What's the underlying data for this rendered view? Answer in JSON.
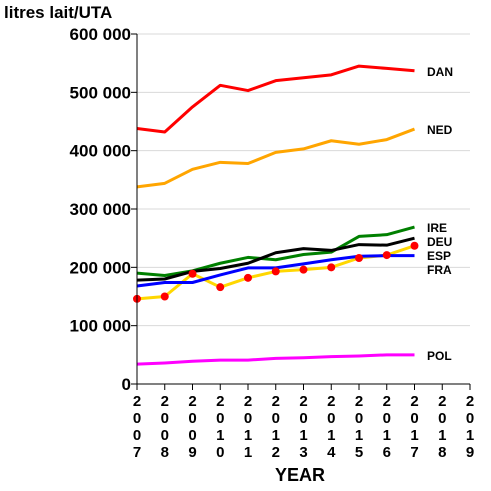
{
  "chart_data": {
    "type": "line",
    "title": "",
    "ylabel": "litres lait/UTA",
    "xlabel": "YEAR",
    "x": [
      2007,
      2008,
      2009,
      2010,
      2011,
      2012,
      2013,
      2014,
      2015,
      2016,
      2017
    ],
    "xlim": [
      2007,
      2019
    ],
    "x_ticks": [
      "2007",
      "2008",
      "2009",
      "2010",
      "2011",
      "2012",
      "2013",
      "2014",
      "2015",
      "2016",
      "2017",
      "2018",
      "2019"
    ],
    "ylim": [
      0,
      600000
    ],
    "y_ticks": [
      "0",
      "100 000",
      "200 000",
      "300 000",
      "400 000",
      "500 000",
      "600 000"
    ],
    "grid": "horizontal",
    "series": [
      {
        "name": "DAN",
        "color": "#ff0000",
        "values": [
          438000,
          432000,
          475000,
          512000,
          503000,
          520000,
          525000,
          530000,
          545000,
          541000,
          537000
        ]
      },
      {
        "name": "NED",
        "color": "#ffa500",
        "values": [
          338000,
          344000,
          368000,
          380000,
          378000,
          397000,
          403000,
          417000,
          411000,
          419000,
          437000
        ]
      },
      {
        "name": "IRE",
        "color": "#008000",
        "values": [
          190000,
          186000,
          194000,
          207000,
          217000,
          213000,
          222000,
          226000,
          253000,
          256000,
          269000
        ]
      },
      {
        "name": "DEU",
        "color": "#000000",
        "values": [
          178000,
          180000,
          193000,
          198000,
          207000,
          225000,
          232000,
          229000,
          239000,
          238000,
          250000
        ]
      },
      {
        "name": "ESP",
        "color": "#ffd700",
        "marker_color": "#ff0000",
        "markers": true,
        "values": [
          146000,
          150000,
          189000,
          166000,
          182000,
          193000,
          196000,
          200000,
          216000,
          221000,
          237000
        ]
      },
      {
        "name": "FRA",
        "color": "#0000ff",
        "values": [
          168000,
          174000,
          174000,
          187000,
          199000,
          199000,
          206000,
          213000,
          219000,
          220000,
          220000
        ]
      },
      {
        "name": "POL",
        "color": "#ff00ff",
        "values": [
          34000,
          36000,
          39000,
          41000,
          41000,
          44000,
          45000,
          47000,
          48000,
          50000,
          50000
        ]
      }
    ]
  }
}
